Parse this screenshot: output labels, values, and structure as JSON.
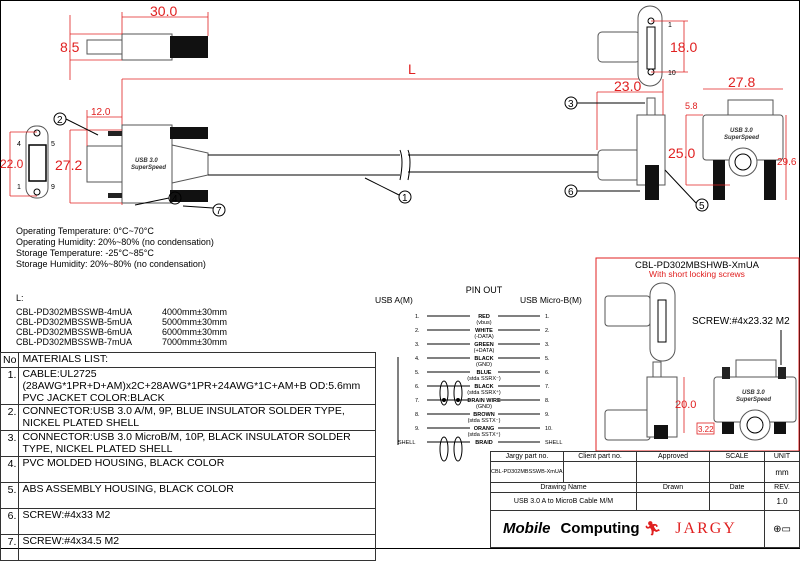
{
  "drawing": {
    "dimensions": {
      "top_view_length": "30.0",
      "top_view_height": "8.5",
      "a_plug_length": "12.0",
      "a_face_height": "22.0",
      "a_side_height": "27.2",
      "cable_length": "L",
      "micro_face_pins": "18.0",
      "micro_depth": "23.0",
      "micro_width": "27.8",
      "micro_tab": "5.8",
      "micro_height": "25.0",
      "micro_total": "29.6",
      "alt_height": "20.0",
      "alt_screw": "3.22"
    },
    "pin_labels": {
      "a_4": "4",
      "a_5": "5",
      "a_1": "1",
      "a_9": "9",
      "b_1": "1",
      "b_10": "10"
    },
    "callouts": [
      "1",
      "2",
      "3",
      "4",
      "5",
      "6",
      "7"
    ],
    "logo_text": {
      "line1": "USB 3.0",
      "line2": "SuperSpeed"
    }
  },
  "specs": [
    "Operating Temperature: 0°C~70°C",
    "Operating Humidity: 20%~80% (no condensation)",
    "Storage Temperature: -25°C~85°C",
    "Storage  Humidity: 20%~80% (no condensation)"
  ],
  "lengths": {
    "label": "L:",
    "items": [
      {
        "part": "CBL-PD302MBSSWB-4mUA",
        "length": "4000mm±30mm"
      },
      {
        "part": "CBL-PD302MBSSWB-5mUA",
        "length": "5000mm±30mm"
      },
      {
        "part": "CBL-PD302MBSSWB-6mUA",
        "length": "6000mm±30mm"
      },
      {
        "part": "CBL-PD302MBSSWB-7mUA",
        "length": "7000mm±30mm"
      }
    ]
  },
  "pinout": {
    "title": "PIN OUT",
    "left_header": "USB A(M)",
    "right_header": "USB Micro-B(M)",
    "rows": [
      {
        "left": "1.",
        "wire": "RED",
        "note": "(vbus)",
        "right": "1."
      },
      {
        "left": "2.",
        "wire": "WHITE",
        "note": "(-DATA)",
        "right": "2."
      },
      {
        "left": "3.",
        "wire": "GREEN",
        "note": "(+DATA)",
        "right": "3."
      },
      {
        "left": "4.",
        "wire": "BLACK",
        "note": "(GND)",
        "right": "5."
      },
      {
        "left": "5.",
        "wire": "BLUE",
        "note": "(stda SSRX⁻)",
        "right": "6."
      },
      {
        "left": "6.",
        "wire": "BLACK",
        "note": "(stda SSRX⁺)",
        "right": "7."
      },
      {
        "left": "7.",
        "wire": "DRAIN WIRE",
        "note": "(GND)",
        "right": "8."
      },
      {
        "left": "8.",
        "wire": "BROWN",
        "note": "(stda SSTX⁻)",
        "right": "9."
      },
      {
        "left": "9.",
        "wire": "ORANG",
        "note": "(stda SSTX⁺)",
        "right": "10."
      },
      {
        "left": "SHELL",
        "wire": "BRAID",
        "note": "",
        "right": "SHELL"
      }
    ]
  },
  "variant": {
    "title": "CBL-PD302MBSHWB-XmUA",
    "subtitle": "With short locking screws",
    "screw_note": "SCREW:#4x23.32 M2"
  },
  "materials": {
    "header_no": "No",
    "header": "MATERIALS LIST:",
    "items": [
      {
        "no": "1.",
        "text": "CABLE:UL2725 (28AWG*1PR+D+AM)x2C+28AWG*1PR+24AWG*1C+AM+B OD:5.6mm  PVC JACKET COLOR:BLACK"
      },
      {
        "no": "2.",
        "text": "CONNECTOR:USB 3.0 A/M, 9P, BLUE INSULATOR SOLDER TYPE, NICKEL PLATED SHELL"
      },
      {
        "no": "3.",
        "text": "CONNECTOR:USB 3.0 MicroB/M, 10P, BLACK INSULATOR SOLDER TYPE, NICKEL PLATED SHELL"
      },
      {
        "no": "4.",
        "text": "PVC MOLDED HOUSING, BLACK COLOR"
      },
      {
        "no": "5.",
        "text": "ABS ASSEMBLY HOUSING, BLACK COLOR"
      },
      {
        "no": "6.",
        "text": "SCREW:#4x33 M2"
      },
      {
        "no": "7.",
        "text": "SCREW:#4x34.5 M2"
      }
    ]
  },
  "title_block": {
    "jargy_part_label": "Jargy part no.",
    "client_part_label": "Client part no.",
    "approved_label": "Approved",
    "scale_label": "SCALE",
    "unit_label": "UNIT",
    "jargy_part_value": "CBL-PD302MBSSWB-XmUA",
    "unit_value": "mm",
    "drawing_name_label": "Drawing Name",
    "drawn_label": "Drawn",
    "date_label": "Date",
    "rev_label": "REV.",
    "drawing_name_value": "USB 3.0 A to MicroB Cable M/M",
    "rev_value": "1.0",
    "logo_mobile": "Mobile",
    "logo_computing": "Computing",
    "logo_jargy": "JARGY"
  },
  "colors": {
    "dimension": "#e02020",
    "line": "#000000",
    "logo_red": "#e02020"
  }
}
